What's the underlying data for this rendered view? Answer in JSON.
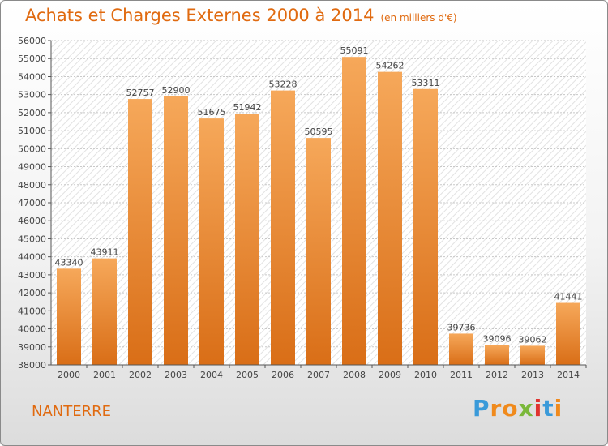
{
  "header": {
    "title": "Achats et Charges Externes 2000 à 2014",
    "subtitle": "(en milliers d'€)"
  },
  "footer": {
    "city": "NANTERRE",
    "logo": {
      "letters": [
        "P",
        "r",
        "o",
        "x",
        "i",
        "t",
        "i"
      ],
      "colors": [
        "#3a9ad9",
        "#f08a1c",
        "#f08a1c",
        "#7ab83a",
        "#e0332f",
        "#3a9ad9",
        "#f08a1c"
      ]
    }
  },
  "colors": {
    "bar_light": "#f6a85a",
    "bar_dark": "#d96e17",
    "accent": "#e06a10"
  },
  "chart_data": {
    "type": "bar",
    "title": "Achats et Charges Externes 2000 à 2014",
    "subtitle": "(en milliers d'€)",
    "categories": [
      "2000",
      "2001",
      "2002",
      "2003",
      "2004",
      "2005",
      "2006",
      "2007",
      "2008",
      "2009",
      "2010",
      "2011",
      "2012",
      "2013",
      "2014"
    ],
    "values": [
      43340,
      43911,
      52757,
      52900,
      51675,
      51942,
      53228,
      50595,
      55091,
      54262,
      53311,
      39736,
      39096,
      39062,
      41441
    ],
    "ylim": [
      38000,
      56000
    ],
    "ytick_step": 1000,
    "grid": true,
    "legend": "none"
  }
}
